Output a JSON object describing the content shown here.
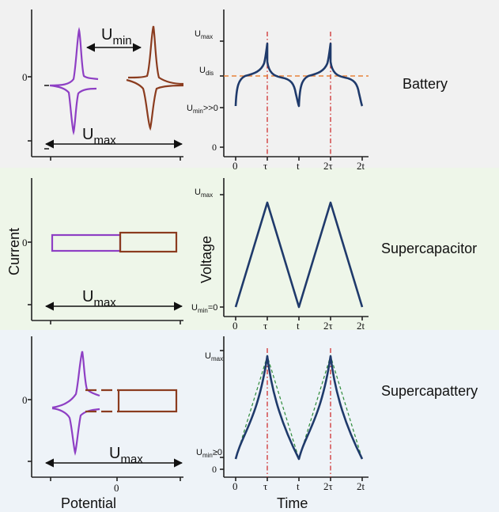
{
  "colors": {
    "band_battery": "#f1f1f1",
    "band_supercapacitor": "#eef6e9",
    "band_supercapattery": "#eef3f8",
    "axis": "#222222",
    "purple": "#8e3fc4",
    "brown": "#8b3c1f",
    "navy": "#1f3a6b",
    "red_dashdot": "#cc2020",
    "orange_dash": "#e8823a",
    "green_dash": "#2e8b3a"
  },
  "labels": {
    "battery": "Battery",
    "supercapacitor": "Supercapacitor",
    "supercapattery": "Supercapattery",
    "current": "Current",
    "voltage": "Voltage",
    "potential": "Potential",
    "time": "Time",
    "zero": "0",
    "u": "U",
    "sub_min": "min",
    "sub_max": "max",
    "sub_dis": "dis",
    "umin_batt_suffix": ">>0",
    "umin_cap_suffix": "=0",
    "umin_capattery_suffix": "≥0"
  },
  "time_ticks": [
    "0",
    "τ",
    "t",
    "2τ",
    "2t"
  ],
  "battery_voltage_ticks": [
    "Umax",
    "Udis",
    "Umin>>0",
    "0"
  ],
  "supercapacitor_voltage_ticks": [
    "Umax",
    "Umin=0"
  ],
  "supercapattery_voltage_ticks": [
    "Umax",
    "Umin≥0",
    "0"
  ]
}
